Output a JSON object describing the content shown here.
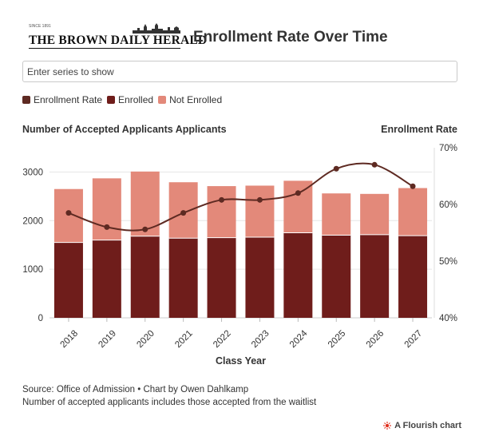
{
  "header": {
    "logo_text": "THE BROWN DAILY HERALD",
    "logo_est": "SINCE 1891",
    "title": "Enrollment Rate Over Time"
  },
  "search": {
    "placeholder": "Enter series to show"
  },
  "legend": [
    {
      "label": "Enrollment Rate",
      "color": "#5e2a22"
    },
    {
      "label": "Enrolled",
      "color": "#6f1d1b"
    },
    {
      "label": "Not Enrolled",
      "color": "#e3897a"
    }
  ],
  "chart_data": {
    "type": "bar",
    "stacked": true,
    "xlabel": "Class Year",
    "ylabel": "Number of Accepted Applicants Applicants",
    "y2label": "Enrollment Rate",
    "categories": [
      "2018",
      "2019",
      "2020",
      "2021",
      "2022",
      "2023",
      "2024",
      "2025",
      "2026",
      "2027"
    ],
    "ylim": [
      0,
      3500
    ],
    "yticks": [
      0,
      1000,
      2000,
      3000
    ],
    "y2lim": [
      40,
      70
    ],
    "y2ticks": [
      "40%",
      "50%",
      "60%",
      "70%"
    ],
    "series": [
      {
        "name": "Enrolled",
        "color": "#6f1d1b",
        "values": [
          1550,
          1600,
          1680,
          1640,
          1650,
          1660,
          1750,
          1700,
          1710,
          1690
        ]
      },
      {
        "name": "Not Enrolled",
        "color": "#e3897a",
        "values": [
          1100,
          1270,
          1330,
          1150,
          1060,
          1060,
          1070,
          860,
          840,
          980
        ]
      },
      {
        "name": "Enrollment Rate",
        "color": "#5e2a22",
        "type": "line",
        "axis": "right",
        "values": [
          58.5,
          56.0,
          55.6,
          58.5,
          60.8,
          60.8,
          62.0,
          66.3,
          67.0,
          63.2
        ]
      }
    ],
    "grid": true
  },
  "footer": {
    "source": "Source: Office of Admission • Chart by Owen Dahlkamp",
    "note": "Number of accepted applicants includes those accepted from the waitlist",
    "flourish": "A Flourish chart"
  }
}
